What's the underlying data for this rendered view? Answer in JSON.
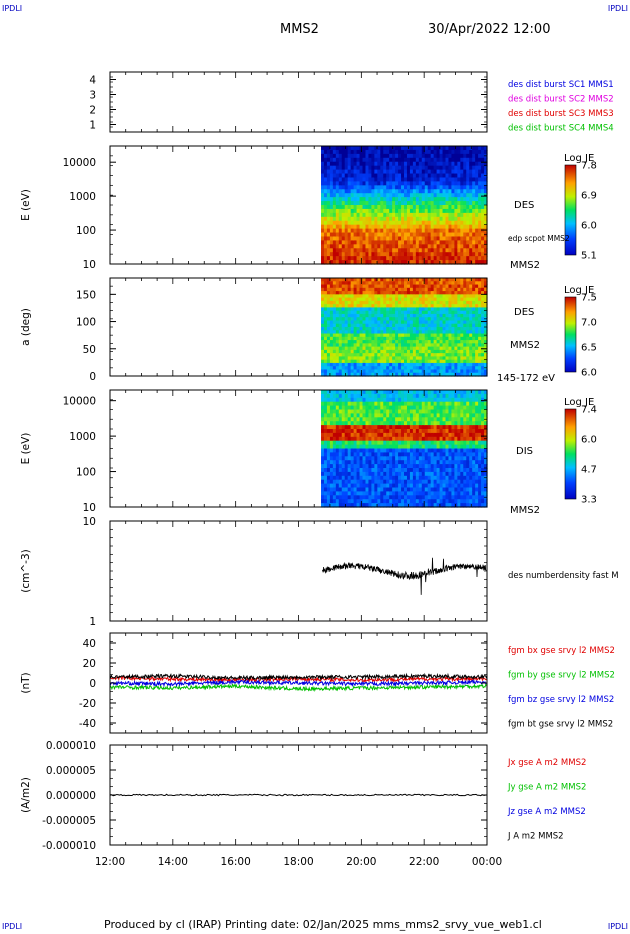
{
  "corner_marks": [
    "IPDLI",
    "IPDLI",
    "IPDLI",
    "IPDLI"
  ],
  "header": {
    "spacecraft": "MMS2",
    "datetime": "30/Apr/2022 12:00"
  },
  "footer": {
    "text": "Produced by cl (IRAP)   Printing date: 02/Jan/2025   mms_mms2_srvy_vue_web1.cl"
  },
  "colors": {
    "red": "#e00000",
    "green": "#00c000",
    "blue": "#0000e0",
    "magenta": "#e000e0",
    "black": "#000000"
  },
  "chart_data": [
    {
      "type": "line",
      "id": "sc-config",
      "ylim": [
        0.5,
        4.5
      ],
      "yticks": [
        "1",
        "2",
        "3",
        "4"
      ],
      "legend": [
        {
          "label": "des dist burst SC1 MMS1",
          "color": "#0000e0"
        },
        {
          "label": "des dist burst SC2 MMS2",
          "color": "#e000e0"
        },
        {
          "label": "des dist burst SC3 MMS3",
          "color": "#e00000"
        },
        {
          "label": "des dist burst SC4 MMS4",
          "color": "#00c000"
        }
      ],
      "series": []
    },
    {
      "type": "heatmap",
      "id": "des-energy",
      "ylabel": "E (eV)",
      "yscale": "log",
      "ylim": [
        10,
        30000
      ],
      "yticks": [
        "10",
        "100",
        "1000",
        "10000"
      ],
      "data_start": "18:43",
      "right_labels": [
        "DES",
        "edp scpot MMS2",
        "MMS2"
      ],
      "colorbar": {
        "label": "Log JE",
        "ticks": [
          "7.8",
          "6.9",
          "6.0",
          "5.1"
        ]
      }
    },
    {
      "type": "heatmap",
      "id": "des-pitch",
      "ylabel": "a (deg)",
      "ylim": [
        0,
        180
      ],
      "yticks": [
        "0",
        "50",
        "100",
        "150"
      ],
      "data_start": "18:43",
      "right_labels": [
        "DES",
        "MMS2",
        "145-172 eV"
      ],
      "colorbar": {
        "label": "Log JE",
        "ticks": [
          "7.5",
          "7.0",
          "6.5",
          "6.0"
        ]
      }
    },
    {
      "type": "heatmap",
      "id": "dis-energy",
      "ylabel": "E (eV)",
      "yscale": "log",
      "ylim": [
        10,
        20000
      ],
      "yticks": [
        "10",
        "100",
        "1000",
        "10000"
      ],
      "data_start": "18:43",
      "right_labels": [
        "DIS",
        "MMS2"
      ],
      "colorbar": {
        "label": "Log JE",
        "ticks": [
          "7.4",
          "6.0",
          "4.7",
          "3.3"
        ]
      }
    },
    {
      "type": "line",
      "id": "density",
      "ylabel": "(cm^-3)",
      "yscale": "log",
      "ylim": [
        1,
        10
      ],
      "yticks": [
        "1",
        "10"
      ],
      "legend": [
        {
          "label": "des numberdensity fast M",
          "color": "#000000"
        }
      ],
      "series": [
        {
          "name": "des numberdensity fast M",
          "color": "#000000",
          "x": [
            18.75,
            19.0,
            19.25,
            19.5,
            19.75,
            20.0,
            20.25,
            20.5,
            20.75,
            21.0,
            21.25,
            21.5,
            21.75,
            22.0,
            22.25,
            22.5,
            22.75,
            23.0,
            23.25,
            23.5,
            23.75,
            24.0
          ],
          "y": [
            3.6,
            3.8,
            3.5,
            3.4,
            3.2,
            3.1,
            3.0,
            3.1,
            3.2,
            3.3,
            3.1,
            3.2,
            3.1,
            3.0,
            3.1,
            3.2,
            3.0,
            3.1,
            3.2,
            3.0,
            3.1,
            2.9
          ]
        }
      ]
    },
    {
      "type": "line",
      "id": "fgm",
      "ylabel": "(nT)",
      "ylim": [
        -50,
        50
      ],
      "yticks": [
        "-40",
        "-20",
        "0",
        "20",
        "40"
      ],
      "legend": [
        {
          "label": "fgm bx gse srvy l2 MMS2",
          "color": "#e00000"
        },
        {
          "label": "fgm by gse srvy l2 MMS2",
          "color": "#00c000"
        },
        {
          "label": "fgm bz gse srvy l2 MMS2",
          "color": "#0000e0"
        },
        {
          "label": "fgm bt gse srvy l2 MMS2",
          "color": "#000000"
        }
      ],
      "series": [
        {
          "name": "fgm bx gse srvy l2 MMS2",
          "color": "#e00000",
          "x": [
            12,
            14,
            16,
            18,
            20,
            22,
            24
          ],
          "y": [
            5,
            4,
            3,
            4,
            3,
            4,
            4
          ]
        },
        {
          "name": "fgm by gse srvy l2 MMS2",
          "color": "#00c000",
          "x": [
            12,
            14,
            16,
            18,
            20,
            22,
            24
          ],
          "y": [
            -4,
            -5,
            -3,
            -6,
            -5,
            -4,
            -3
          ]
        },
        {
          "name": "fgm bz gse srvy l2 MMS2",
          "color": "#0000e0",
          "x": [
            12,
            14,
            16,
            18,
            20,
            22,
            24
          ],
          "y": [
            0,
            -1,
            1,
            0,
            -1,
            0,
            1
          ]
        },
        {
          "name": "fgm bt gse srvy l2 MMS2",
          "color": "#000000",
          "x": [
            12,
            14,
            16,
            18,
            20,
            22,
            24
          ],
          "y": [
            6,
            7,
            5,
            6,
            6,
            7,
            6
          ]
        }
      ]
    },
    {
      "type": "line",
      "id": "current",
      "ylabel": "(A/m2)",
      "ylim": [
        -1e-05,
        1e-05
      ],
      "yticks": [
        "-0.000010",
        "-0.000005",
        "0.000000",
        "0.000005",
        "0.000010"
      ],
      "xticks": [
        "12:00",
        "14:00",
        "16:00",
        "18:00",
        "20:00",
        "22:00",
        "00:00"
      ],
      "legend": [
        {
          "label": "Jx gse A m2 MMS2",
          "color": "#e00000"
        },
        {
          "label": "Jy gse A m2 MMS2",
          "color": "#00c000"
        },
        {
          "label": "Jz gse A m2 MMS2",
          "color": "#0000e0"
        },
        {
          "label": "J A m2 MMS2",
          "color": "#000000"
        }
      ],
      "series": [
        {
          "name": "J A m2 MMS2",
          "color": "#000000",
          "x": [
            12,
            24
          ],
          "y": [
            0,
            0
          ]
        }
      ]
    }
  ]
}
